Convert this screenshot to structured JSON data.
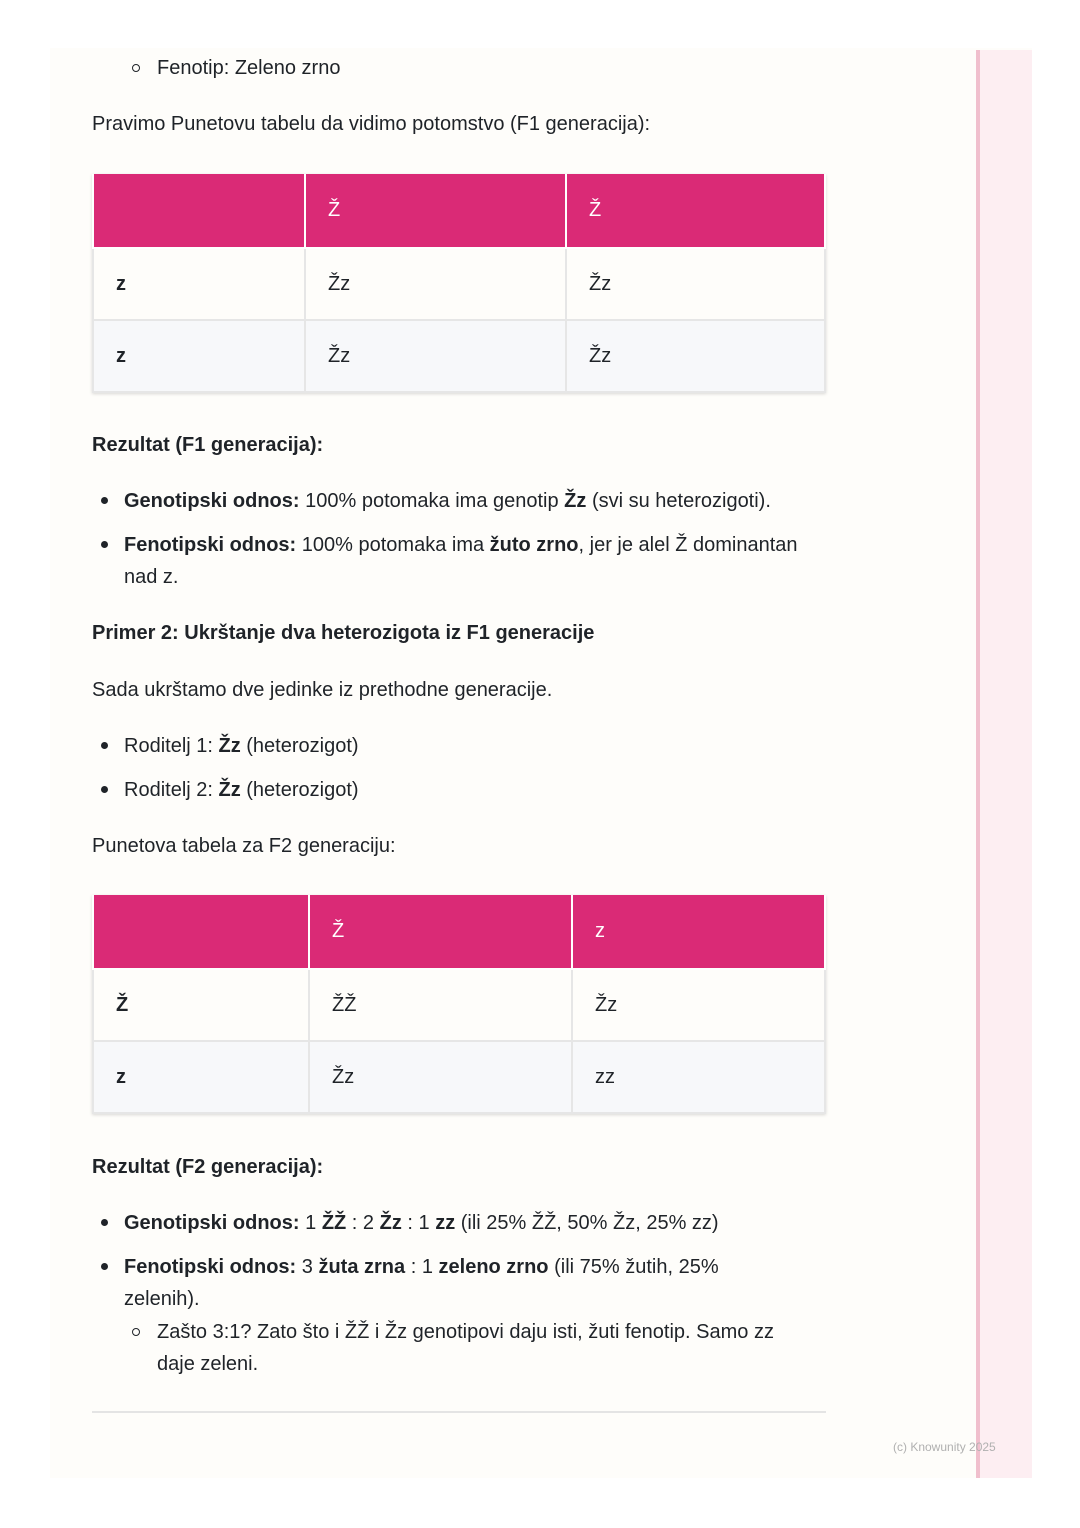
{
  "intro_sub": "Fenotip: Zeleno zrno",
  "p1": "Pravimo Punetovu tabelu da vidimo potomstvo (F1 generacija):",
  "table1": {
    "header": [
      "",
      "Ž",
      "Ž"
    ],
    "rows": [
      [
        "z",
        "Žz",
        "Žz"
      ],
      [
        "z",
        "Žz",
        "Žz"
      ]
    ]
  },
  "r1_title": "Rezultat (F1 generacija):",
  "r1": {
    "g_label": "Genotipski odnos:",
    "g_a": " 100% potomaka ima genotip ",
    "g_b": "Žz",
    "g_c": " (svi su heterozigoti).",
    "f_label": "Fenotipski odnos:",
    "f_a": " 100% potomaka ima ",
    "f_b": "žuto zrno",
    "f_c": ", jer je alel Ž dominantan",
    "f_d": "nad z."
  },
  "primer2": "Primer 2: Ukrštanje dva heterozigota iz F1 generacije",
  "p2": "Sada ukrštamo dve jedinke iz prethodne generacije.",
  "rod1": {
    "a": "Roditelj 1: ",
    "b": "Žz",
    "c": " (heterozigot)"
  },
  "rod2": {
    "a": "Roditelj 2: ",
    "b": "Žz",
    "c": " (heterozigot)"
  },
  "p3": "Punetova tabela za F2 generaciju:",
  "table2": {
    "header": [
      "",
      "Ž",
      "z"
    ],
    "rows": [
      [
        "Ž",
        "ŽŽ",
        "Žz"
      ],
      [
        "z",
        "Žz",
        "zz"
      ]
    ]
  },
  "r2_title": "Rezultat (F2 generacija):",
  "r2": {
    "g_label": "Genotipski odnos:",
    "g1": " 1 ",
    "g2": "ŽŽ",
    "g3": " : 2 ",
    "g4": "Žz",
    "g5": " : 1 ",
    "g6": "zz",
    "g7": " (ili 25% ŽŽ, 50% Žz, 25% zz)",
    "f_label": "Fenotipski odnos:",
    "f1": " 3 ",
    "f2": "žuta zrna",
    "f3": " : 1 ",
    "f4": "zeleno zrno",
    "f5": " (ili 75% žutih, 25%",
    "f6": "zelenih).",
    "s1": "Zašto 3:1? Zato što i ŽŽ i Žz genotipovi daju isti, žuti fenotip. Samo zz",
    "s2": "daje zeleni."
  },
  "copyright": "(c) Knowunity 2025"
}
